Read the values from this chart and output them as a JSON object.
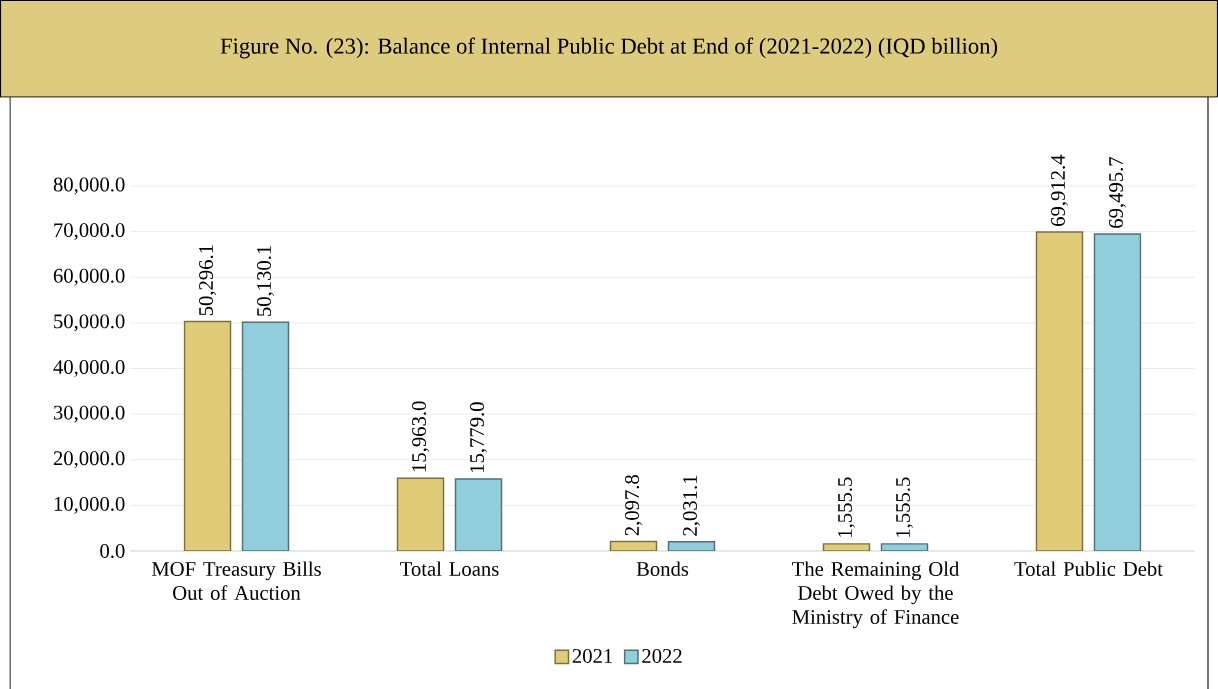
{
  "chart_data": {
    "type": "bar",
    "title": "Figure No. (23): Balance of Internal Public Debt at End of (2021-2022) (IQD billion)",
    "categories": [
      "MOF Treasury Bills Out of Auction",
      "Total Loans",
      "Bonds",
      "The Remaining Old Debt Owed by the Ministry of Finance",
      "Total Public Debt"
    ],
    "series": [
      {
        "name": "2021",
        "color": "#E0CC78",
        "values": [
          50296.1,
          15963.0,
          2097.8,
          1555.5,
          69912.4
        ],
        "value_labels": [
          "50,296.1",
          "15,963.0",
          "2,097.8",
          "1,555.5",
          "69,912.4"
        ]
      },
      {
        "name": "2022",
        "color": "#92CDDC",
        "values": [
          50130.1,
          15779.0,
          2031.1,
          1555.5,
          69495.7
        ],
        "value_labels": [
          "50,130.1",
          "15,779.0",
          "2,031.1",
          "1,555.5",
          "69,495.7"
        ]
      }
    ],
    "ylim": [
      0,
      80000
    ],
    "yticks": [
      {
        "value": 0,
        "label": "0.0"
      },
      {
        "value": 10000,
        "label": "10,000.0"
      },
      {
        "value": 20000,
        "label": "20,000.0"
      },
      {
        "value": 30000,
        "label": "30,000.0"
      },
      {
        "value": 40000,
        "label": "40,000.0"
      },
      {
        "value": 50000,
        "label": "50,000.0"
      },
      {
        "value": 60000,
        "label": "60,000.0"
      },
      {
        "value": 70000,
        "label": "70,000.0"
      },
      {
        "value": 80000,
        "label": "80,000.0"
      }
    ],
    "grid": "y",
    "legend": "bottom"
  }
}
